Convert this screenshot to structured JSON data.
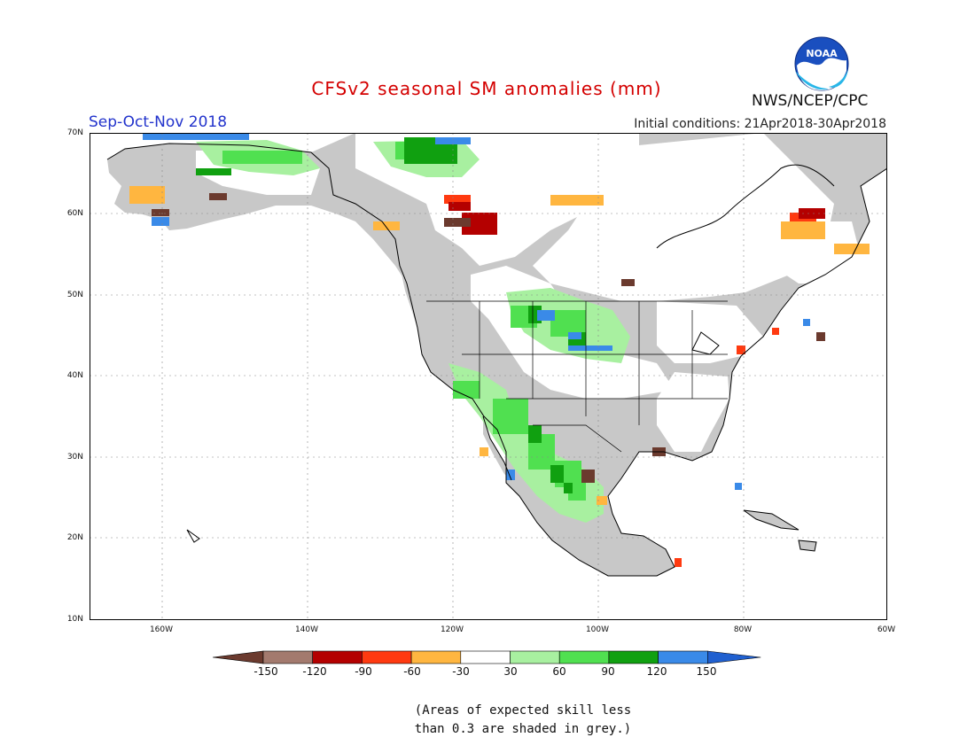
{
  "title": "CFSv2 seasonal SM anomalies (mm)",
  "season": "Sep-Oct-Nov 2018",
  "initial_conditions": "Initial conditions: 21Apr2018-30Apr2018",
  "agency": "NWS/NCEP/CPC",
  "logo_text": "NOAA",
  "lat_labels": [
    "70N",
    "60N",
    "50N",
    "40N",
    "30N",
    "20N",
    "10N"
  ],
  "lon_labels": [
    "160W",
    "140W",
    "120W",
    "100W",
    "80W",
    "60W"
  ],
  "colorbar": {
    "labels": [
      "-150",
      "-120",
      "-90",
      "-60",
      "-30",
      "30",
      "60",
      "90",
      "120",
      "150"
    ],
    "colors": [
      "#6b3a2e",
      "#a37a6e",
      "#b40000",
      "#ff3a10",
      "#ffb640",
      "#ffffff",
      "#a8f0a0",
      "#50e050",
      "#10a010",
      "#3a8ae8",
      "#2060d0"
    ]
  },
  "note_line1": "(Areas of expected skill less",
  "note_line2": "than 0.3 are shaded in grey.)",
  "colors": {
    "land_grey": "#c8c8c8",
    "ocean_white": "#ffffff",
    "coast": "#000000"
  }
}
